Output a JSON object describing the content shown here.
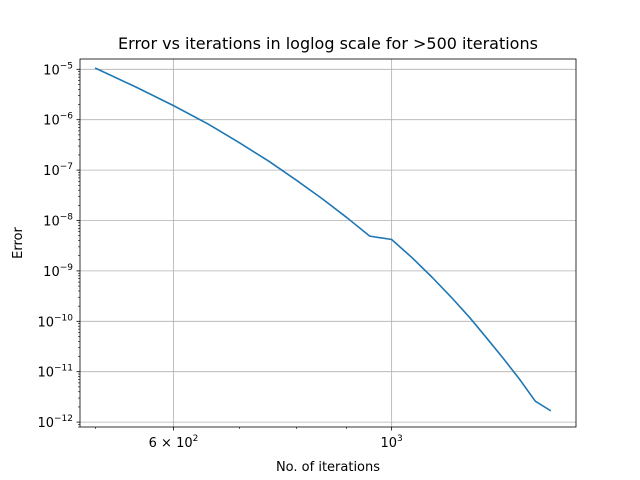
{
  "chart_data": {
    "type": "line",
    "title": "Error vs iterations in loglog scale for >500 iterations",
    "xlabel": "No. of iterations",
    "ylabel": "Error",
    "xscale": "log",
    "yscale": "log",
    "xlim": [
      482,
      1540
    ],
    "ylim": [
      8e-13,
      1.6e-05
    ],
    "grid": true,
    "x_ticks": [
      {
        "value": 600,
        "label": "6 × 10",
        "exp": "2"
      },
      {
        "value": 1000,
        "label": "10",
        "exp": "3"
      }
    ],
    "y_ticks": [
      {
        "value": 1e-05,
        "label": "10",
        "exp": "−5"
      },
      {
        "value": 1e-06,
        "label": "10",
        "exp": "−6"
      },
      {
        "value": 1e-07,
        "label": "10",
        "exp": "−7"
      },
      {
        "value": 1e-08,
        "label": "10",
        "exp": "−8"
      },
      {
        "value": 1e-09,
        "label": "10",
        "exp": "−9"
      },
      {
        "value": 1e-10,
        "label": "10",
        "exp": "−10"
      },
      {
        "value": 1e-11,
        "label": "10",
        "exp": "−11"
      },
      {
        "value": 1e-12,
        "label": "10",
        "exp": "−12"
      }
    ],
    "series": [
      {
        "color": "#1f77b4",
        "points": [
          [
            500,
            1.05e-05
          ],
          [
            550,
            4.4e-06
          ],
          [
            600,
            1.9e-06
          ],
          [
            650,
            8.3e-07
          ],
          [
            700,
            3.5e-07
          ],
          [
            750,
            1.5e-07
          ],
          [
            800,
            6.3e-08
          ],
          [
            850,
            2.7e-08
          ],
          [
            900,
            1.15e-08
          ],
          [
            950,
            4.9e-09
          ],
          [
            1000,
            4.2e-09
          ],
          [
            1050,
            1.8e-09
          ],
          [
            1100,
            7.4e-10
          ],
          [
            1150,
            3e-10
          ],
          [
            1200,
            1.2e-10
          ],
          [
            1250,
            4.6e-11
          ],
          [
            1300,
            1.8e-11
          ],
          [
            1350,
            7e-12
          ],
          [
            1400,
            2.6e-12
          ],
          [
            1450,
            1.7e-12
          ]
        ]
      }
    ]
  }
}
